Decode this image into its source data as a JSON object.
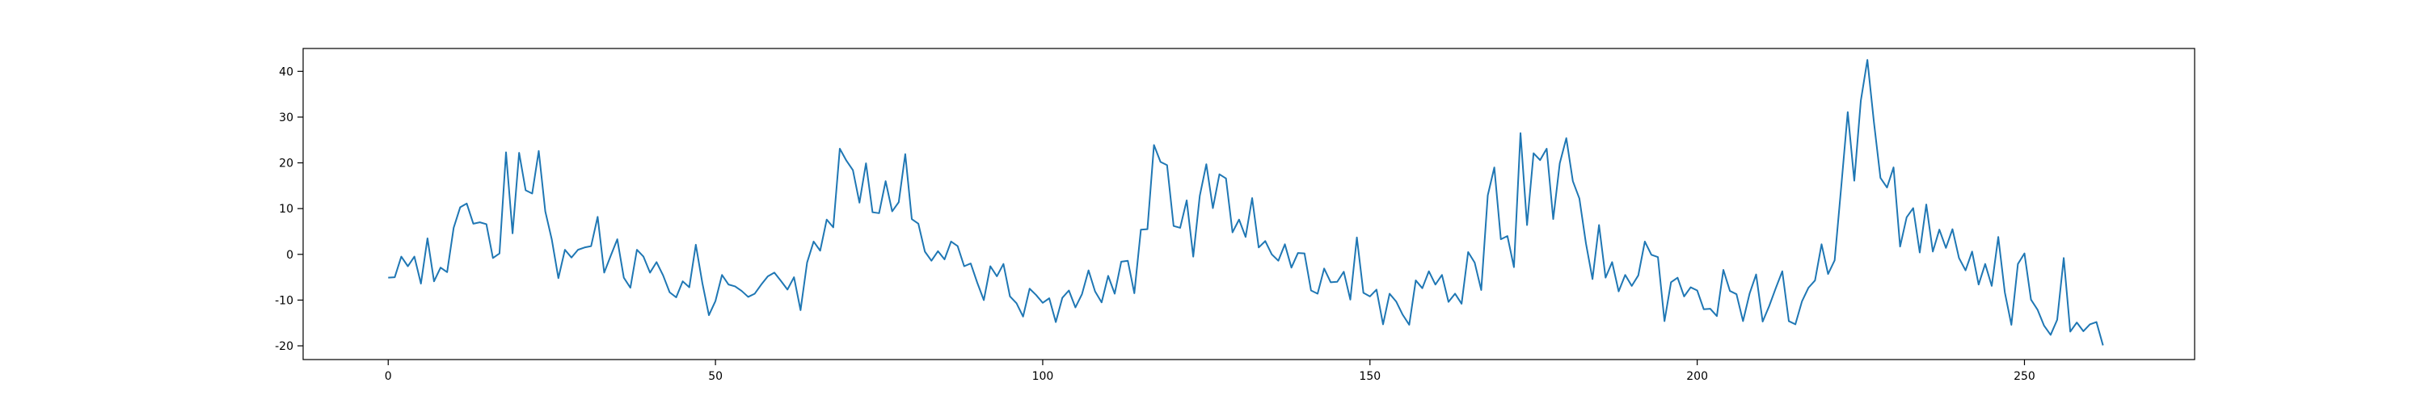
{
  "chart_data": {
    "type": "line",
    "title": "",
    "xlabel": "",
    "ylabel": "",
    "xlim": [
      -13,
      276
    ],
    "ylim": [
      -23,
      45
    ],
    "xticks": [
      0,
      50,
      100,
      150,
      200,
      250
    ],
    "yticks": [
      -20,
      -10,
      0,
      10,
      20,
      30,
      40
    ],
    "grid": false,
    "legend": "none",
    "colors": {
      "line": "#1f77b4",
      "axes": "#000000",
      "background": "#ffffff"
    },
    "series": [
      {
        "values": [
          -5.1,
          -5.0,
          -0.5,
          -2.6,
          -0.5,
          -6.4,
          3.5,
          -5.9,
          -2.9,
          -3.9,
          5.8,
          10.3,
          11.1,
          6.7,
          7.0,
          6.6,
          -0.8,
          0.2,
          22.3,
          4.6,
          22.2,
          14.0,
          13.3,
          22.6,
          9.4,
          3.2,
          -5.2,
          1.0,
          -0.7,
          1.0,
          1.5,
          1.8,
          8.2,
          -4.0,
          -0.3,
          3.3,
          -5.1,
          -7.3,
          1.0,
          -0.5,
          -4.0,
          -1.7,
          -4.6,
          -8.3,
          -9.4,
          -5.9,
          -7.2,
          2.1,
          -6.3,
          -13.3,
          -10.2,
          -4.5,
          -6.6,
          -7.0,
          -8.0,
          -9.3,
          -8.6,
          -6.6,
          -4.8,
          -4.0,
          -5.8,
          -7.7,
          -5.0,
          -12.2,
          -1.8,
          2.8,
          0.8,
          7.6,
          5.9,
          23.1,
          20.5,
          18.4,
          11.3,
          19.9,
          9.2,
          9.0,
          16.0,
          9.4,
          11.4,
          21.9,
          7.7,
          6.7,
          0.6,
          -1.4,
          0.7,
          -1.1,
          2.8,
          1.8,
          -2.6,
          -2.0,
          -6.2,
          -10.0,
          -2.6,
          -4.8,
          -2.1,
          -9.2,
          -10.7,
          -13.6,
          -7.5,
          -8.9,
          -10.6,
          -9.6,
          -14.8,
          -9.5,
          -7.9,
          -11.6,
          -8.7,
          -3.5,
          -8.1,
          -10.5,
          -4.7,
          -8.6,
          -1.6,
          -1.4,
          -8.5,
          5.4,
          5.5,
          23.9,
          20.2,
          19.5,
          6.2,
          5.8,
          11.8,
          -0.5,
          12.8,
          19.7,
          10.1,
          17.5,
          16.6,
          4.8,
          7.6,
          3.8,
          12.3,
          1.5,
          2.9,
          0.0,
          -1.4,
          2.2,
          -2.9,
          0.3,
          0.2,
          -7.9,
          -8.6,
          -3.1,
          -6.1,
          -6.0,
          -3.8,
          -9.9,
          3.7,
          -8.4,
          -9.2,
          -7.7,
          -15.3,
          -8.6,
          -10.3,
          -13.2,
          -15.4,
          -5.7,
          -7.4,
          -3.7,
          -6.6,
          -4.5,
          -10.4,
          -8.6,
          -10.8,
          0.5,
          -1.8,
          -7.8,
          12.9,
          19.0,
          3.3,
          4.0,
          -2.8,
          26.5,
          6.4,
          22.1,
          20.6,
          23.1,
          7.7,
          19.9,
          25.4,
          16.0,
          12.2,
          2.4,
          -5.4,
          6.4,
          -5.1,
          -1.7,
          -8.1,
          -4.5,
          -6.9,
          -4.6,
          2.8,
          -0.1,
          -0.6,
          -14.6,
          -6.1,
          -5.1,
          -9.2,
          -7.2,
          -7.9,
          -12.0,
          -11.9,
          -13.5,
          -3.4,
          -8.0,
          -8.7,
          -14.6,
          -8.6,
          -4.4,
          -14.7,
          -11.3,
          -7.4,
          -3.7,
          -14.6,
          -15.3,
          -10.3,
          -7.3,
          -5.7,
          2.2,
          -4.3,
          -1.3,
          14.7,
          31.1,
          16.1,
          33.6,
          42.5,
          28.9,
          16.7,
          14.6,
          19.0,
          1.7,
          8.1,
          10.1,
          0.4,
          10.9,
          0.6,
          5.4,
          1.4,
          5.5,
          -0.8,
          -3.5,
          0.6,
          -6.6,
          -2.1,
          -6.9,
          3.8,
          -8.3,
          -15.4,
          -2.1,
          0.2,
          -9.9,
          -12.1,
          -15.6,
          -17.6,
          -14.3,
          -0.8,
          -16.9,
          -14.9,
          -16.8,
          -15.3,
          -14.8,
          -19.9
        ]
      }
    ]
  }
}
